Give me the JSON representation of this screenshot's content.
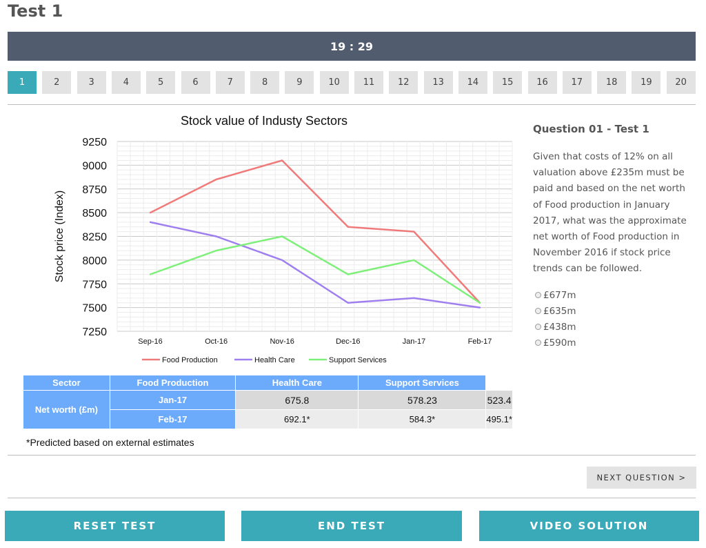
{
  "page": {
    "title": "Test 1",
    "timer": "19 : 29"
  },
  "question_nav": {
    "items": [
      "1",
      "2",
      "3",
      "4",
      "5",
      "6",
      "7",
      "8",
      "9",
      "10",
      "11",
      "12",
      "13",
      "14",
      "15",
      "16",
      "17",
      "18",
      "19",
      "20"
    ],
    "active_index": 0,
    "active_color": "#3aaab8",
    "inactive_color": "#e3e3e3"
  },
  "chart_data": {
    "type": "line",
    "title": "Stock value of Industy Sectors",
    "ylabel": "Stock price (Index)",
    "xlabel": "",
    "x": [
      "Sep-16",
      "Oct-16",
      "Nov-16",
      "Dec-16",
      "Jan-17",
      "Feb-17"
    ],
    "ylim": [
      7250,
      9250
    ],
    "yticks": [
      7250,
      7500,
      7750,
      8000,
      8250,
      8500,
      8750,
      9000,
      9250
    ],
    "grid": true,
    "legend_position": "bottom",
    "series": [
      {
        "name": "Food Production",
        "color": "#f07a7a",
        "values": [
          8500,
          8850,
          9050,
          8350,
          8300,
          7550
        ]
      },
      {
        "name": "Health Care",
        "color": "#9f7ef0",
        "values": [
          8400,
          8250,
          8000,
          7550,
          7600,
          7500
        ]
      },
      {
        "name": "Support Services",
        "color": "#7ef07a",
        "values": [
          7850,
          8100,
          8250,
          7850,
          8000,
          7550
        ]
      }
    ]
  },
  "table": {
    "header": [
      "Sector",
      "Food Production",
      "Health Care",
      "Support Services"
    ],
    "row_group_label": "Net worth (£m)",
    "rows": [
      {
        "label": "Jan-17",
        "values": [
          "675.8",
          "578.23",
          "523.4"
        ]
      },
      {
        "label": "Feb-17",
        "values": [
          "692.1*",
          "584.3*",
          "495.1*"
        ]
      }
    ],
    "footnote": "*Predicted based on external estimates"
  },
  "question": {
    "title": "Question 01 - Test 1",
    "text": "Given that costs of 12% on all valuation above £235m must be paid and based on the net worth of Food production in January 2017, what was the approximate net worth of Food production in November 2016 if stock price trends can be followed.",
    "options": [
      "£677m",
      "£635m",
      "£438m",
      "£590m"
    ]
  },
  "buttons": {
    "next": "NEXT QUESTION >",
    "reset": "RESET TEST",
    "end": "END TEST",
    "video": "VIDEO SOLUTION"
  }
}
